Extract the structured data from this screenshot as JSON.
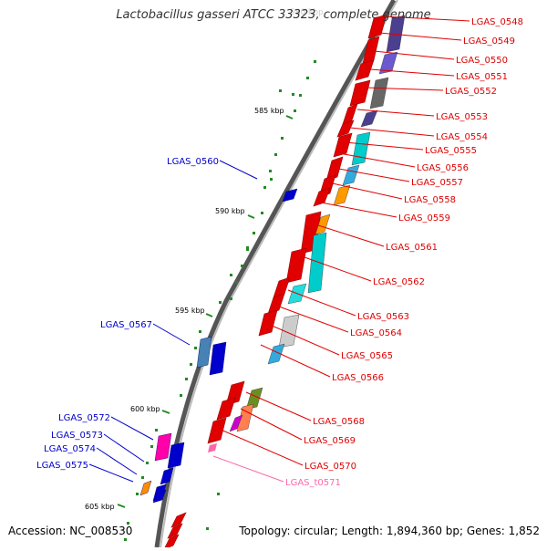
{
  "title": "Lactobacillus gasseri ATCC 33323, complete genome",
  "accession": "Accession: NC_008530",
  "topology": "Topology: circular; Length: 1,894,360 bp; Genes: 1,852",
  "scale_labels": [
    "585 kbp",
    "590 kbp",
    "595 kbp",
    "600 kbp",
    "605 kbp"
  ],
  "colors": {
    "forward_strand": "#e00000",
    "reverse_strand": "#0000cc",
    "trna": "#ff66aa",
    "backbone": "#808080",
    "tick": "#228b22"
  },
  "genes_forward": [
    "LGAS_0548",
    "LGAS_0549",
    "LGAS_0550",
    "LGAS_0551",
    "LGAS_0552",
    "LGAS_0553",
    "LGAS_0554",
    "LGAS_0555",
    "LGAS_0556",
    "LGAS_0557",
    "LGAS_0558",
    "LGAS_0559",
    "LGAS_0561",
    "LGAS_0562",
    "LGAS_0563",
    "LGAS_0564",
    "LGAS_0565",
    "LGAS_0566",
    "LGAS_0568",
    "LGAS_0569",
    "LGAS_0570",
    "LGAS_t0571"
  ],
  "genes_reverse": [
    "LGAS_0560",
    "LGAS_0567",
    "LGAS_0572",
    "LGAS_0573",
    "LGAS_0574",
    "LGAS_0575"
  ]
}
